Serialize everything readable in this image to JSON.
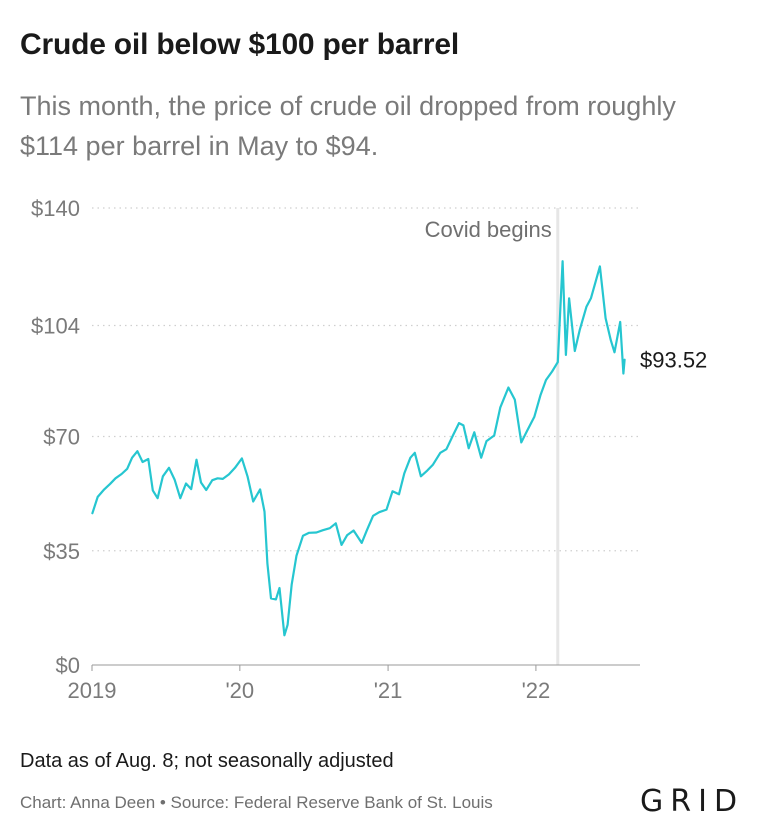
{
  "header": {
    "title": "Crude oil below $100 per barrel",
    "subtitle": "This month, the price of crude oil dropped from roughly $114 per barrel in May to $94."
  },
  "footer": {
    "note": "Data as of Aug. 8; not seasonally adjusted",
    "credit": "Chart: Anna Deen • Source: Federal Reserve Bank of St. Louis",
    "logo": "GRID"
  },
  "colors": {
    "line": "#26c6d0",
    "grid": "#cfcfcf",
    "axis_text": "#7a7a7a",
    "annotation_rule": "#e6e6e6"
  },
  "chart_data": {
    "type": "line",
    "title": "Crude oil below $100 per barrel",
    "ylim": [
      0,
      140
    ],
    "y_ticks": [
      {
        "value": 0,
        "label": "$0"
      },
      {
        "value": 35,
        "label": "$35"
      },
      {
        "value": 70,
        "label": "$70"
      },
      {
        "value": 104,
        "label": "$104"
      },
      {
        "value": 140,
        "label": "$140"
      }
    ],
    "xlim": [
      "2019-01-01",
      "2022-09-15"
    ],
    "x_ticks": [
      {
        "value": "2019-01-01",
        "label": "2019"
      },
      {
        "value": "2020-01-01",
        "label": "'20"
      },
      {
        "value": "2021-01-01",
        "label": "'21"
      },
      {
        "value": "2022-01-01",
        "label": "'22"
      }
    ],
    "grid": "horizontal dotted",
    "annotation": {
      "label": "Covid begins",
      "x": "2022-02-24"
    },
    "end_label": "$93.52",
    "series": [
      {
        "values": [
          [
            "2019-01-02",
            46.5
          ],
          [
            "2019-01-15",
            51.5
          ],
          [
            "2019-01-31",
            53.8
          ],
          [
            "2019-02-15",
            55.5
          ],
          [
            "2019-02-28",
            57.2
          ],
          [
            "2019-03-15",
            58.5
          ],
          [
            "2019-03-29",
            60.1
          ],
          [
            "2019-04-10",
            63.5
          ],
          [
            "2019-04-23",
            65.5
          ],
          [
            "2019-05-06",
            62.2
          ],
          [
            "2019-05-20",
            63.1
          ],
          [
            "2019-05-31",
            53.5
          ],
          [
            "2019-06-12",
            51.1
          ],
          [
            "2019-06-25",
            57.8
          ],
          [
            "2019-07-10",
            60.4
          ],
          [
            "2019-07-24",
            56.8
          ],
          [
            "2019-08-07",
            51.1
          ],
          [
            "2019-08-21",
            55.6
          ],
          [
            "2019-09-03",
            53.9
          ],
          [
            "2019-09-16",
            62.9
          ],
          [
            "2019-09-27",
            55.9
          ],
          [
            "2019-10-10",
            53.6
          ],
          [
            "2019-10-25",
            56.6
          ],
          [
            "2019-11-07",
            57.2
          ],
          [
            "2019-11-20",
            57.0
          ],
          [
            "2019-12-05",
            58.4
          ],
          [
            "2019-12-20",
            60.4
          ],
          [
            "2020-01-06",
            63.3
          ],
          [
            "2020-01-20",
            57.8
          ],
          [
            "2020-02-03",
            50.1
          ],
          [
            "2020-02-20",
            53.8
          ],
          [
            "2020-03-02",
            47.0
          ],
          [
            "2020-03-09",
            31.1
          ],
          [
            "2020-03-18",
            20.4
          ],
          [
            "2020-03-30",
            20.1
          ],
          [
            "2020-04-08",
            23.6
          ],
          [
            "2020-04-20",
            9.1
          ],
          [
            "2020-04-28",
            12.3
          ],
          [
            "2020-05-08",
            24.7
          ],
          [
            "2020-05-20",
            33.5
          ],
          [
            "2020-06-05",
            39.6
          ],
          [
            "2020-06-20",
            40.5
          ],
          [
            "2020-07-08",
            40.6
          ],
          [
            "2020-07-24",
            41.3
          ],
          [
            "2020-08-10",
            41.9
          ],
          [
            "2020-08-25",
            43.4
          ],
          [
            "2020-09-08",
            36.8
          ],
          [
            "2020-09-22",
            39.8
          ],
          [
            "2020-10-08",
            41.2
          ],
          [
            "2020-10-28",
            37.4
          ],
          [
            "2020-11-10",
            41.4
          ],
          [
            "2020-11-25",
            45.7
          ],
          [
            "2020-12-10",
            46.8
          ],
          [
            "2020-12-28",
            47.6
          ],
          [
            "2021-01-12",
            53.2
          ],
          [
            "2021-01-28",
            52.3
          ],
          [
            "2021-02-10",
            58.7
          ],
          [
            "2021-02-25",
            63.5
          ],
          [
            "2021-03-08",
            65.0
          ],
          [
            "2021-03-23",
            57.8
          ],
          [
            "2021-04-08",
            59.6
          ],
          [
            "2021-04-22",
            61.4
          ],
          [
            "2021-05-10",
            65.0
          ],
          [
            "2021-05-25",
            66.1
          ],
          [
            "2021-06-10",
            70.3
          ],
          [
            "2021-06-25",
            74.1
          ],
          [
            "2021-07-06",
            73.4
          ],
          [
            "2021-07-19",
            66.4
          ],
          [
            "2021-08-02",
            71.3
          ],
          [
            "2021-08-19",
            63.5
          ],
          [
            "2021-09-01",
            68.6
          ],
          [
            "2021-09-20",
            70.3
          ],
          [
            "2021-10-05",
            78.9
          ],
          [
            "2021-10-25",
            85.0
          ],
          [
            "2021-11-10",
            81.3
          ],
          [
            "2021-11-26",
            68.2
          ],
          [
            "2021-12-10",
            71.7
          ],
          [
            "2021-12-28",
            76.0
          ],
          [
            "2022-01-12",
            82.6
          ],
          [
            "2022-01-26",
            87.3
          ],
          [
            "2022-02-10",
            89.9
          ],
          [
            "2022-02-24",
            92.8
          ],
          [
            "2022-03-08",
            123.7
          ],
          [
            "2022-03-16",
            95.0
          ],
          [
            "2022-03-24",
            112.3
          ],
          [
            "2022-04-07",
            96.2
          ],
          [
            "2022-04-19",
            102.6
          ],
          [
            "2022-05-06",
            109.8
          ],
          [
            "2022-05-17",
            112.4
          ],
          [
            "2022-06-08",
            122.1
          ],
          [
            "2022-06-22",
            106.2
          ],
          [
            "2022-07-05",
            99.5
          ],
          [
            "2022-07-14",
            95.8
          ],
          [
            "2022-07-28",
            105.1
          ],
          [
            "2022-08-05",
            89.3
          ],
          [
            "2022-08-08",
            93.52
          ]
        ]
      }
    ]
  }
}
